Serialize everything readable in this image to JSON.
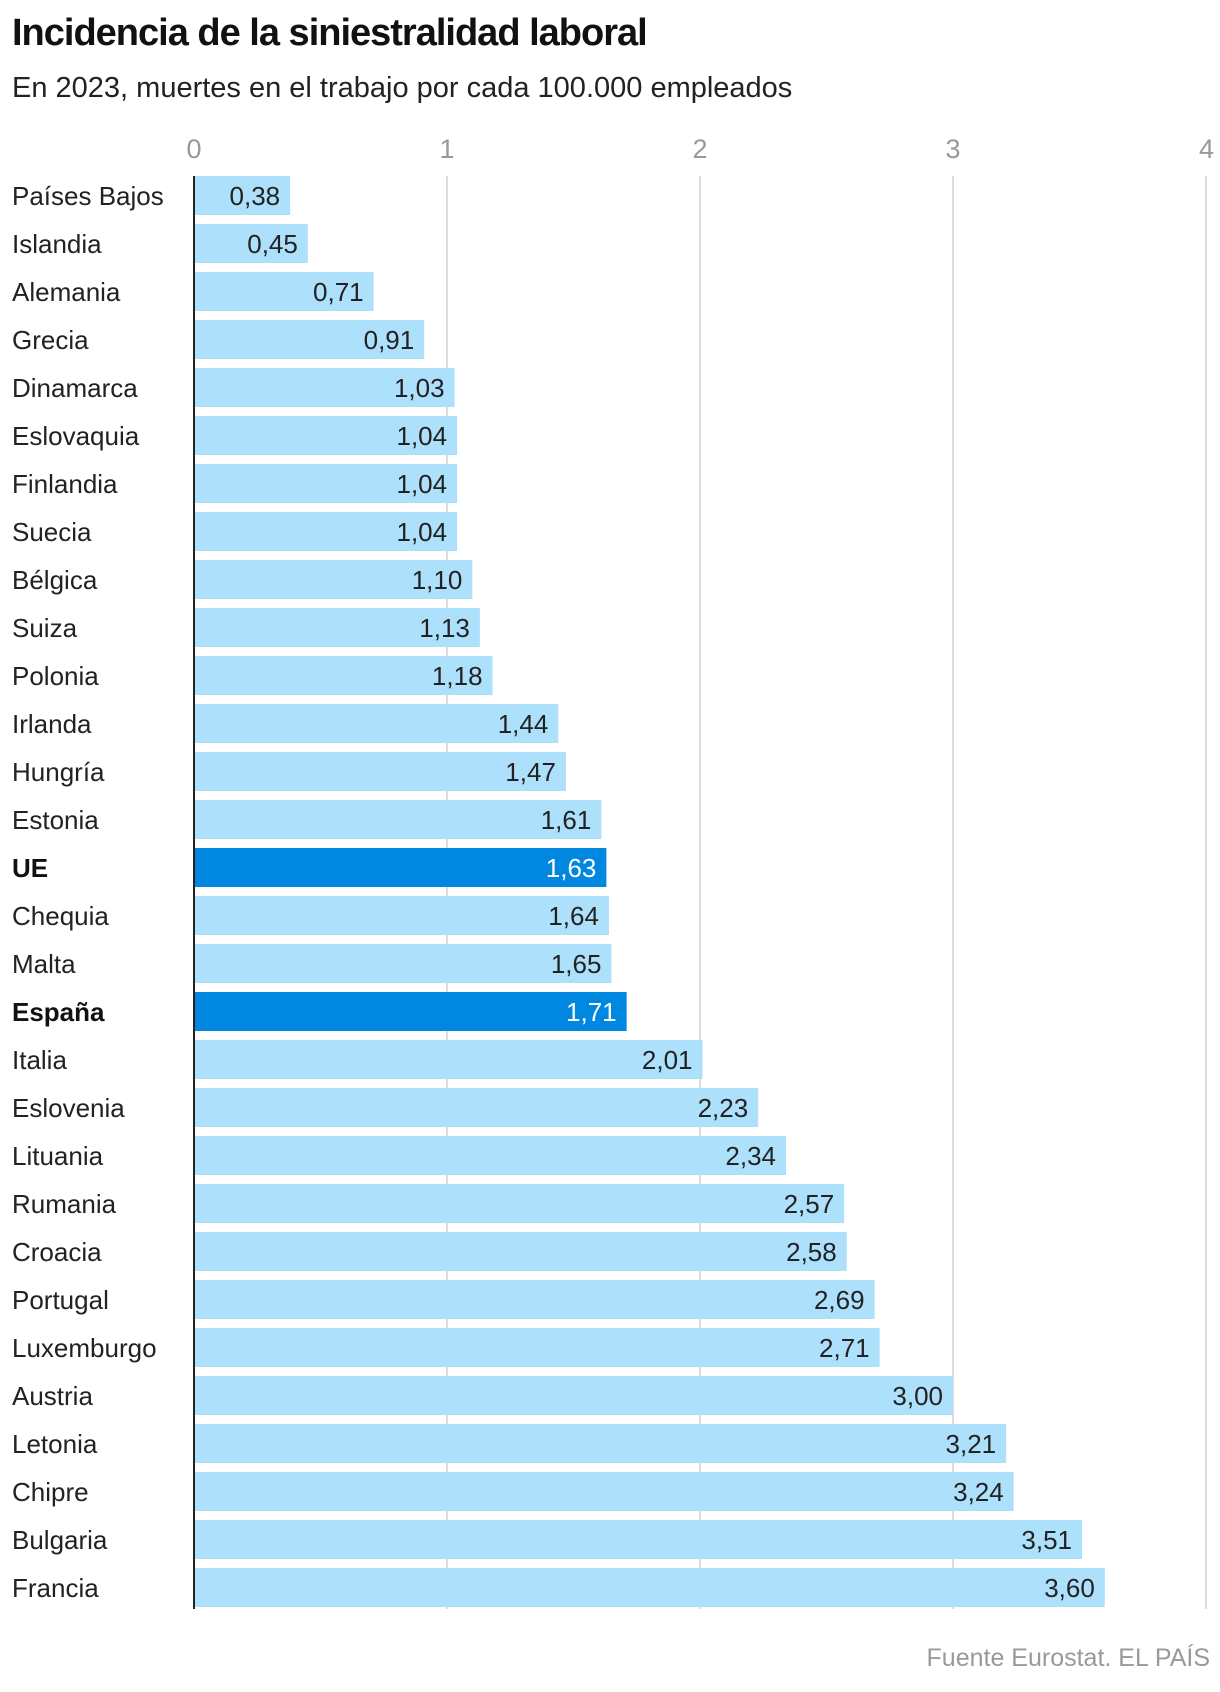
{
  "chart_data": {
    "type": "bar",
    "orientation": "horizontal",
    "title": "Incidencia de la siniestralidad laboral",
    "subtitle": "En 2023, muertes en el trabajo por cada 100.000 empleados",
    "source": "Fuente Eurostat. EL PAÍS",
    "xlim": [
      0,
      4
    ],
    "x_ticks": [
      "0",
      "1",
      "2",
      "3",
      "4"
    ],
    "grid": true,
    "categories": [
      "Países Bajos",
      "Islandia",
      "Alemania",
      "Grecia",
      "Dinamarca",
      "Eslovaquia",
      "Finlandia",
      "Suecia",
      "Bélgica",
      "Suiza",
      "Polonia",
      "Irlanda",
      "Hungría",
      "Estonia",
      "UE",
      "Chequia",
      "Malta",
      "España",
      "Italia",
      "Eslovenia",
      "Lituania",
      "Rumania",
      "Croacia",
      "Portugal",
      "Luxemburgo",
      "Austria",
      "Letonia",
      "Chipre",
      "Bulgaria",
      "Francia"
    ],
    "values": [
      0.38,
      0.45,
      0.71,
      0.91,
      1.03,
      1.04,
      1.04,
      1.04,
      1.1,
      1.13,
      1.18,
      1.44,
      1.47,
      1.61,
      1.63,
      1.64,
      1.65,
      1.71,
      2.01,
      2.23,
      2.34,
      2.57,
      2.58,
      2.69,
      2.71,
      3.0,
      3.21,
      3.24,
      3.51,
      3.6
    ],
    "value_labels": [
      "0,38",
      "0,45",
      "0,71",
      "0,91",
      "1,03",
      "1,04",
      "1,04",
      "1,04",
      "1,10",
      "1,13",
      "1,18",
      "1,44",
      "1,47",
      "1,61",
      "1,63",
      "1,64",
      "1,65",
      "1,71",
      "2,01",
      "2,23",
      "2,34",
      "2,57",
      "2,58",
      "2,69",
      "2,71",
      "3,00",
      "3,21",
      "3,24",
      "3,51",
      "3,60"
    ],
    "highlighted": [
      "UE",
      "España"
    ],
    "colors": {
      "bar": "#ade1fb",
      "highlight": "#0088e0",
      "grid": "#dddddd",
      "axis": "#222222"
    }
  }
}
